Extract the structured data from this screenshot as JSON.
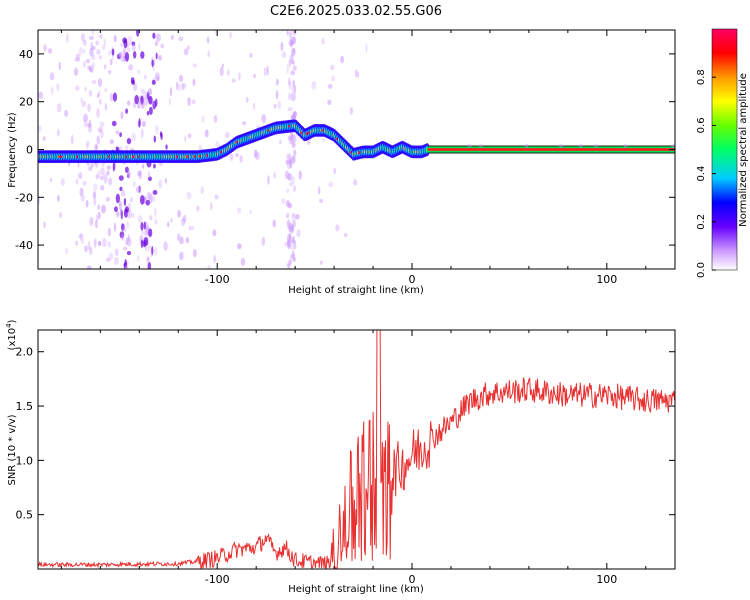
{
  "title": "C2E6.2025.033.02.55.G06",
  "chart_data": [
    {
      "type": "heatmap",
      "xlabel": "Height of straight line (km)",
      "ylabel": "Frequency (Hz)",
      "xlim": [
        -192,
        135
      ],
      "ylim": [
        -50,
        50
      ],
      "x_ticks": [
        -100,
        0,
        100
      ],
      "x_tick_labels": [
        "-100",
        "0",
        "100"
      ],
      "y_ticks": [
        -40,
        -20,
        0,
        20,
        40
      ],
      "y_tick_labels": [
        "-40",
        "-20",
        "0",
        "20",
        "40"
      ],
      "grid": false,
      "ridge": {
        "x": [
          -192,
          -175,
          -160,
          -150,
          -140,
          -130,
          -120,
          -110,
          -100,
          -95,
          -90,
          -80,
          -70,
          -60,
          -55,
          -50,
          -45,
          -40,
          -35,
          -30,
          -25,
          -20,
          -15,
          -10,
          -5,
          0,
          5,
          8,
          135
        ],
        "y": [
          -3,
          -3,
          -3,
          -3,
          -3,
          -3,
          -3,
          -3,
          -2,
          0,
          3,
          6,
          9,
          10,
          6,
          8,
          8,
          6,
          2,
          -2,
          -1,
          -1,
          1,
          -1,
          1,
          -1,
          -1,
          0,
          0
        ]
      },
      "colorbar": {
        "label": "Normalized spectral amplitude",
        "range": [
          0,
          1
        ],
        "ticks": [
          0.0,
          0.2,
          0.4,
          0.6,
          0.8
        ],
        "tick_labels": [
          "0.0",
          "0.2",
          "0.4",
          "0.6",
          "0.8"
        ],
        "colors": [
          "#ffffff",
          "#cc99ff",
          "#6600ff",
          "#0000ff",
          "#00ccff",
          "#00ff66",
          "#66ff00",
          "#ffff00",
          "#ff9900",
          "#ff0000",
          "#ff0066"
        ]
      }
    },
    {
      "type": "line",
      "xlabel": "Height of straight line (km)",
      "ylabel": "SNR (10 * v/v)",
      "y_multiplier": "(x10",
      "y_multiplier_exp": "4",
      "y_multiplier_close": ")",
      "xlim": [
        -192,
        135
      ],
      "ylim": [
        0,
        2.2
      ],
      "x_ticks": [
        -100,
        0,
        100
      ],
      "x_tick_labels": [
        "-100",
        "0",
        "100"
      ],
      "y_ticks": [
        0.5,
        1.0,
        1.5,
        2.0
      ],
      "y_tick_labels": [
        "0.5",
        "1.0",
        "1.5",
        "2.0"
      ],
      "grid": false,
      "series": [
        {
          "color": "#e83030",
          "x": [
            -192,
            -160,
            -120,
            -110,
            -100,
            -90,
            -80,
            -75,
            -70,
            -65,
            -60,
            -50,
            -42,
            -38,
            -35,
            -30,
            -25,
            -20,
            -17,
            -15,
            -10,
            -5,
            0,
            10,
            20,
            30,
            40,
            60,
            80,
            100,
            120,
            135
          ],
          "y": [
            0.04,
            0.04,
            0.05,
            0.07,
            0.1,
            0.18,
            0.2,
            0.28,
            0.15,
            0.2,
            0.08,
            0.05,
            0.04,
            0.1,
            0.4,
            0.75,
            0.9,
            1.1,
            1.4,
            1.0,
            0.9,
            0.95,
            1.05,
            1.2,
            1.35,
            1.55,
            1.62,
            1.65,
            1.6,
            1.6,
            1.55,
            1.55
          ]
        }
      ]
    }
  ]
}
